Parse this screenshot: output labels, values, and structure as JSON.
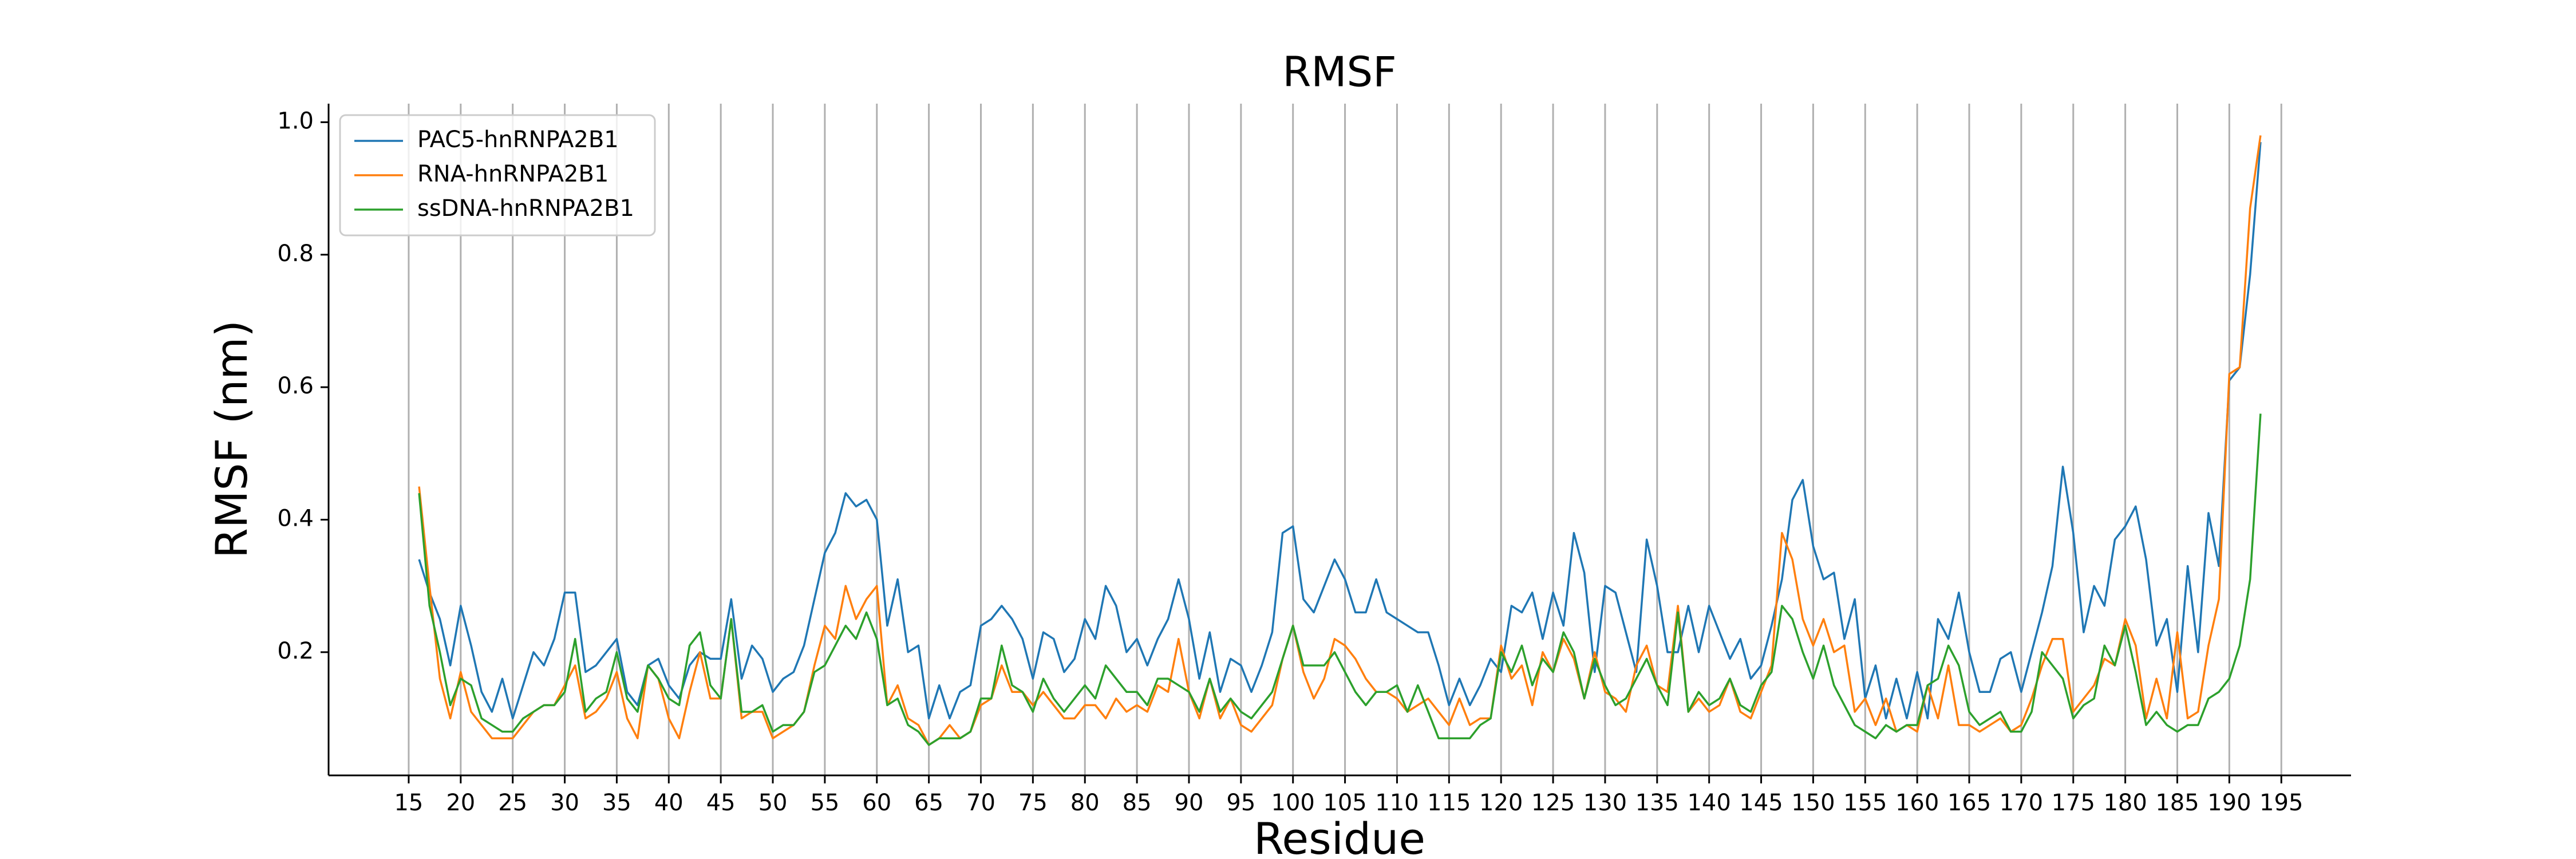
{
  "chart_data": {
    "type": "line",
    "title": "RMSF",
    "xlabel": "Residue",
    "ylabel": "RMSF (nm)",
    "x": [
      16,
      17,
      18,
      19,
      20,
      21,
      22,
      23,
      24,
      25,
      26,
      27,
      28,
      29,
      30,
      31,
      32,
      33,
      34,
      35,
      36,
      37,
      38,
      39,
      40,
      41,
      42,
      43,
      44,
      45,
      46,
      47,
      48,
      49,
      50,
      51,
      52,
      53,
      54,
      55,
      56,
      57,
      58,
      59,
      60,
      61,
      62,
      63,
      64,
      65,
      66,
      67,
      68,
      69,
      70,
      71,
      72,
      73,
      74,
      75,
      76,
      77,
      78,
      79,
      80,
      81,
      82,
      83,
      84,
      85,
      86,
      87,
      88,
      89,
      90,
      91,
      92,
      93,
      94,
      95,
      96,
      97,
      98,
      99,
      100,
      101,
      102,
      103,
      104,
      105,
      106,
      107,
      108,
      109,
      110,
      111,
      112,
      113,
      114,
      115,
      116,
      117,
      118,
      119,
      120,
      121,
      122,
      123,
      124,
      125,
      126,
      127,
      128,
      129,
      130,
      131,
      132,
      133,
      134,
      135,
      136,
      137,
      138,
      139,
      140,
      141,
      142,
      143,
      144,
      145,
      146,
      147,
      148,
      149,
      150,
      151,
      152,
      153,
      154,
      155,
      156,
      157,
      158,
      159,
      160,
      161,
      162,
      163,
      164,
      165,
      166,
      167,
      168,
      169,
      170,
      171,
      172,
      173,
      174,
      175,
      176,
      177,
      178,
      179,
      180,
      181,
      182,
      183,
      184,
      185,
      186,
      187,
      188,
      189,
      190,
      191,
      192,
      193
    ],
    "series": [
      {
        "name": "PAC5-hnRNPA2B1",
        "color": "#1f77b4",
        "values": [
          0.34,
          0.29,
          0.25,
          0.18,
          0.27,
          0.21,
          0.14,
          0.11,
          0.16,
          0.1,
          0.15,
          0.2,
          0.18,
          0.22,
          0.29,
          0.29,
          0.17,
          0.18,
          0.2,
          0.22,
          0.14,
          0.12,
          0.18,
          0.19,
          0.15,
          0.13,
          0.18,
          0.2,
          0.19,
          0.19,
          0.28,
          0.16,
          0.21,
          0.19,
          0.14,
          0.16,
          0.17,
          0.21,
          0.28,
          0.35,
          0.38,
          0.44,
          0.42,
          0.43,
          0.4,
          0.24,
          0.31,
          0.2,
          0.21,
          0.1,
          0.15,
          0.1,
          0.14,
          0.15,
          0.24,
          0.25,
          0.27,
          0.25,
          0.22,
          0.16,
          0.23,
          0.22,
          0.17,
          0.19,
          0.25,
          0.22,
          0.3,
          0.27,
          0.2,
          0.22,
          0.18,
          0.22,
          0.25,
          0.31,
          0.25,
          0.16,
          0.23,
          0.14,
          0.19,
          0.18,
          0.14,
          0.18,
          0.23,
          0.38,
          0.39,
          0.28,
          0.26,
          0.3,
          0.34,
          0.31,
          0.26,
          0.26,
          0.31,
          0.26,
          0.25,
          0.24,
          0.23,
          0.23,
          0.18,
          0.12,
          0.16,
          0.12,
          0.15,
          0.19,
          0.17,
          0.27,
          0.26,
          0.29,
          0.22,
          0.29,
          0.24,
          0.38,
          0.32,
          0.17,
          0.3,
          0.29,
          0.23,
          0.17,
          0.37,
          0.3,
          0.2,
          0.2,
          0.27,
          0.2,
          0.27,
          0.23,
          0.19,
          0.22,
          0.16,
          0.18,
          0.24,
          0.31,
          0.43,
          0.46,
          0.36,
          0.31,
          0.32,
          0.22,
          0.28,
          0.13,
          0.18,
          0.1,
          0.16,
          0.1,
          0.17,
          0.1,
          0.25,
          0.22,
          0.29,
          0.2,
          0.14,
          0.14,
          0.19,
          0.2,
          0.14,
          0.2,
          0.26,
          0.33,
          0.48,
          0.38,
          0.23,
          0.3,
          0.27,
          0.37,
          0.39,
          0.42,
          0.34,
          0.21,
          0.25,
          0.14,
          0.33,
          0.2,
          0.41,
          0.33,
          0.61,
          0.63,
          0.77,
          0.97
        ]
      },
      {
        "name": "RNA-hnRNPA2B1",
        "color": "#ff7f0e",
        "values": [
          0.45,
          0.3,
          0.16,
          0.1,
          0.17,
          0.11,
          0.09,
          0.07,
          0.07,
          0.07,
          0.09,
          0.11,
          0.12,
          0.12,
          0.15,
          0.18,
          0.1,
          0.11,
          0.13,
          0.17,
          0.1,
          0.07,
          0.18,
          0.16,
          0.1,
          0.07,
          0.14,
          0.2,
          0.13,
          0.13,
          0.25,
          0.1,
          0.11,
          0.11,
          0.07,
          0.08,
          0.09,
          0.11,
          0.18,
          0.24,
          0.22,
          0.3,
          0.25,
          0.28,
          0.3,
          0.12,
          0.15,
          0.1,
          0.09,
          0.06,
          0.07,
          0.09,
          0.07,
          0.08,
          0.12,
          0.13,
          0.18,
          0.14,
          0.14,
          0.12,
          0.14,
          0.12,
          0.1,
          0.1,
          0.12,
          0.12,
          0.1,
          0.13,
          0.11,
          0.12,
          0.11,
          0.15,
          0.14,
          0.22,
          0.14,
          0.1,
          0.16,
          0.1,
          0.13,
          0.09,
          0.08,
          0.1,
          0.12,
          0.19,
          0.24,
          0.17,
          0.13,
          0.16,
          0.22,
          0.21,
          0.19,
          0.16,
          0.14,
          0.14,
          0.13,
          0.11,
          0.12,
          0.13,
          0.11,
          0.09,
          0.13,
          0.09,
          0.1,
          0.1,
          0.21,
          0.16,
          0.18,
          0.12,
          0.2,
          0.17,
          0.22,
          0.19,
          0.13,
          0.2,
          0.14,
          0.13,
          0.11,
          0.18,
          0.21,
          0.15,
          0.14,
          0.27,
          0.11,
          0.13,
          0.11,
          0.12,
          0.16,
          0.11,
          0.1,
          0.14,
          0.18,
          0.38,
          0.34,
          0.25,
          0.21,
          0.25,
          0.2,
          0.21,
          0.11,
          0.13,
          0.09,
          0.13,
          0.08,
          0.09,
          0.08,
          0.15,
          0.1,
          0.18,
          0.09,
          0.09,
          0.08,
          0.09,
          0.1,
          0.08,
          0.09,
          0.13,
          0.18,
          0.22,
          0.22,
          0.11,
          0.13,
          0.15,
          0.19,
          0.18,
          0.25,
          0.21,
          0.1,
          0.16,
          0.1,
          0.23,
          0.1,
          0.11,
          0.21,
          0.28,
          0.62,
          0.63,
          0.87,
          0.98
        ]
      },
      {
        "name": "ssDNA-hnRNPA2B1",
        "color": "#2ca02c",
        "values": [
          0.44,
          0.27,
          0.2,
          0.12,
          0.16,
          0.15,
          0.1,
          0.09,
          0.08,
          0.08,
          0.1,
          0.11,
          0.12,
          0.12,
          0.14,
          0.22,
          0.11,
          0.13,
          0.14,
          0.2,
          0.13,
          0.11,
          0.18,
          0.16,
          0.13,
          0.12,
          0.21,
          0.23,
          0.15,
          0.13,
          0.25,
          0.11,
          0.11,
          0.12,
          0.08,
          0.09,
          0.09,
          0.11,
          0.17,
          0.18,
          0.21,
          0.24,
          0.22,
          0.26,
          0.22,
          0.12,
          0.13,
          0.09,
          0.08,
          0.06,
          0.07,
          0.07,
          0.07,
          0.08,
          0.13,
          0.13,
          0.21,
          0.15,
          0.14,
          0.11,
          0.16,
          0.13,
          0.11,
          0.13,
          0.15,
          0.13,
          0.18,
          0.16,
          0.14,
          0.14,
          0.12,
          0.16,
          0.16,
          0.15,
          0.14,
          0.11,
          0.16,
          0.11,
          0.13,
          0.11,
          0.1,
          0.12,
          0.14,
          0.19,
          0.24,
          0.18,
          0.18,
          0.18,
          0.2,
          0.17,
          0.14,
          0.12,
          0.14,
          0.14,
          0.15,
          0.11,
          0.15,
          0.11,
          0.07,
          0.07,
          0.07,
          0.07,
          0.09,
          0.1,
          0.2,
          0.17,
          0.21,
          0.15,
          0.19,
          0.17,
          0.23,
          0.2,
          0.13,
          0.19,
          0.15,
          0.12,
          0.13,
          0.16,
          0.19,
          0.15,
          0.12,
          0.26,
          0.11,
          0.14,
          0.12,
          0.13,
          0.16,
          0.12,
          0.11,
          0.15,
          0.17,
          0.27,
          0.25,
          0.2,
          0.16,
          0.21,
          0.15,
          0.12,
          0.09,
          0.08,
          0.07,
          0.09,
          0.08,
          0.09,
          0.09,
          0.15,
          0.16,
          0.21,
          0.18,
          0.11,
          0.09,
          0.1,
          0.11,
          0.08,
          0.08,
          0.11,
          0.2,
          0.18,
          0.16,
          0.1,
          0.12,
          0.13,
          0.21,
          0.18,
          0.24,
          0.17,
          0.09,
          0.11,
          0.09,
          0.08,
          0.09,
          0.09,
          0.13,
          0.14,
          0.16,
          0.21,
          0.31,
          0.56
        ]
      }
    ],
    "xlim": [
      7.3,
      201.7
    ],
    "ylim": [
      0.014,
      1.028
    ],
    "xticks": [
      15,
      20,
      25,
      30,
      35,
      40,
      45,
      50,
      55,
      60,
      65,
      70,
      75,
      80,
      85,
      90,
      95,
      100,
      105,
      110,
      115,
      120,
      125,
      130,
      135,
      140,
      145,
      150,
      155,
      160,
      165,
      170,
      175,
      180,
      185,
      190,
      195
    ],
    "yticks": [
      0.2,
      0.4,
      0.6,
      0.8,
      {
        "value": 1.0,
        "label": "1.0"
      }
    ],
    "grid": "x",
    "legend": "upper left"
  }
}
